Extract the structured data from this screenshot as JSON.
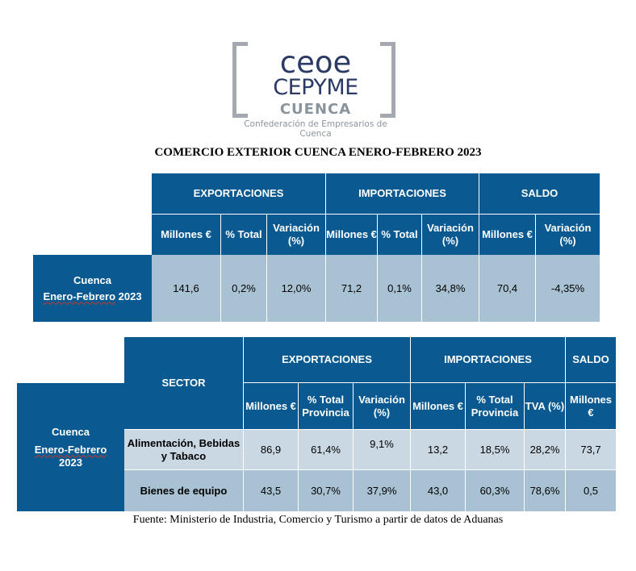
{
  "logo": {
    "line1": "ceoe",
    "line2": "CEPYME",
    "line3": "CUENCA",
    "subtitle": "Confederación de Empresarios de Cuenca"
  },
  "title": "COMERCIO EXTERIOR CUENCA ENERO-FEBRERO 2023",
  "table1": {
    "groups": [
      "EXPORTACIONES",
      "IMPORTACIONES",
      "SALDO"
    ],
    "subheaders": [
      "Millones €",
      "% Total",
      "Variación (%)",
      "Millones €",
      "% Total",
      "Variación (%)",
      "Millones €",
      "Variación (%)"
    ],
    "row_label_1": "Cuenca",
    "row_label_2": "Enero-Febrero",
    "row_label_3": "2023",
    "values": [
      "141,6",
      "0,2%",
      "12,0%",
      "71,2",
      "0,1%",
      "34,8%",
      "70,4",
      "-4,35%"
    ]
  },
  "table2": {
    "sector_header": "SECTOR",
    "groups": [
      "EXPORTACIONES",
      "IMPORTACIONES",
      "SALDO"
    ],
    "subheaders": [
      "Millones €",
      "% Total Provincia",
      "Variación (%)",
      "Millones €",
      "% Total Provincia",
      "TVA (%)",
      "Millones €"
    ],
    "side_label_1": "Cuenca",
    "side_label_2": "Enero-Febrero",
    "side_label_3": "2023",
    "rows": [
      {
        "sector": "Alimentación, Bebidas y Tabaco",
        "values": [
          "86,9",
          "61,4%",
          "9,1%",
          "13,2",
          "18,5%",
          "28,2%",
          "73,7"
        ]
      },
      {
        "sector": "Bienes de equipo",
        "values": [
          "43,5",
          "30,7%",
          "37,9%",
          "43,0",
          "60,3%",
          "78,6%",
          "0,5"
        ]
      }
    ]
  },
  "footer": "Fuente: Ministerio de Industria, Comercio y Turismo a partir de datos de Aduanas",
  "colors": {
    "header": "#0a5a91",
    "row_light": "#cad8e3",
    "row_mid": "#a8c1d3"
  }
}
